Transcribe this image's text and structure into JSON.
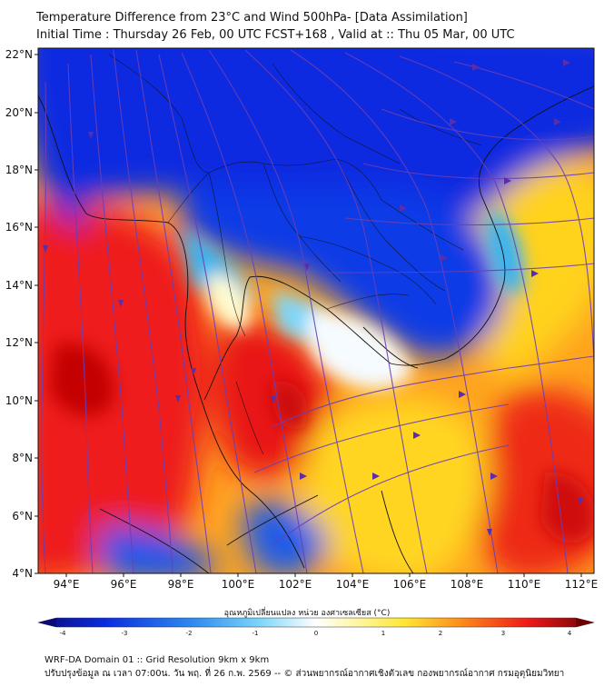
{
  "header": {
    "title_line1": "Temperature Difference from 23°C and Wind 500hPa- [Data Assimilation]",
    "title_line2": "Initial Time : Thursday 26 Feb, 00 UTC FCST+168 , Valid at ::  Thu 05 Mar, 00 UTC"
  },
  "map": {
    "lon_range": [
      93,
      112.5
    ],
    "lat_range": [
      4,
      22.2
    ],
    "lat_ticks": [
      "22°N",
      "20°N",
      "18°N",
      "16°N",
      "14°N",
      "12°N",
      "10°N",
      "8°N",
      "6°N",
      "4°N"
    ],
    "lon_ticks": [
      "94°E",
      "96°E",
      "98°E",
      "100°E",
      "102°E",
      "104°E",
      "106°E",
      "108°E",
      "110°E",
      "112°E"
    ],
    "colors": {
      "deep_blue": "#0a2be0",
      "light_blue": "#3ab4f0",
      "near_zero": "#eef7ff",
      "yellow": "#ffe633",
      "orange": "#ff8c1a",
      "red": "#ee1a1a",
      "dark_red": "#b00000",
      "streamline": "#6a3fb5",
      "border": "#111111"
    }
  },
  "colorbar": {
    "title": "อุณหภูมิเปลี่ยนแปลง หน่วย องศาเซลเซียส (°C)",
    "ticks": [
      "-4",
      "-3",
      "-2",
      "-1",
      "0",
      "1",
      "2",
      "3",
      "4"
    ],
    "range": [
      -4,
      4
    ]
  },
  "footer": {
    "line1": "WRF-DA Domain 01 :: Grid Resolution 9km x 9km",
    "line2": "ปรับปรุงข้อมูล ณ เวลา 07:00น. วัน พฤ. ที่ 26 ก.พ. 2569 -- © ส่วนพยากรณ์อากาศเชิงตัวเลข กองพยากรณ์อากาศ กรมอุตุนิยมวิทยา"
  }
}
